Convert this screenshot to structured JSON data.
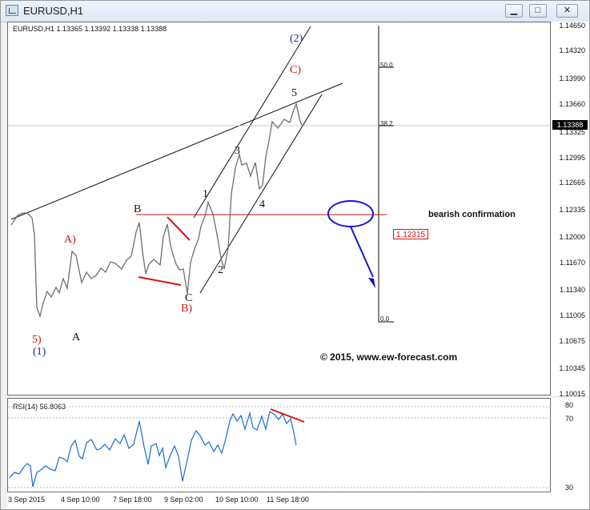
{
  "window": {
    "title": "EURUSD,H1",
    "buttons": {
      "minimize": "▁",
      "maximize": "□",
      "close": "✕"
    }
  },
  "chart": {
    "header": "EURUSD,H1  1.13365 1.13392 1.13338 1.13388",
    "price_axis": [
      "1.14650",
      "1.14320",
      "1.13990",
      "1.13660",
      "1.13325",
      "1.12995",
      "1.12665",
      "1.12335",
      "1.12000",
      "1.11670",
      "1.11340",
      "1.11005",
      "1.10675",
      "1.10345",
      "1.10015"
    ],
    "current_price": "1.13388",
    "level_label": "1.12315",
    "annotations": {
      "bearish": "bearish confirmation",
      "copyright": "© 2015, www.ew-forecast.com",
      "fib_50": "50.0",
      "fib_382": "38.2",
      "fib_0": "0.0"
    },
    "wave_labels": {
      "w1": "1",
      "w2": "2",
      "w3": "3",
      "w4": "4",
      "w5": "5",
      "b": "B",
      "a": "A",
      "c": "C",
      "a_red": "A)",
      "b_red": "B)",
      "c_red": "C)",
      "five_red": "5)",
      "one_blue": "(1)",
      "two_blue": "(2)"
    }
  },
  "rsi": {
    "header": "RSI(14) 56.8063",
    "levels": [
      "80",
      "70",
      "30"
    ]
  },
  "time_axis": [
    "3 Sep 2015",
    "4 Sep 10:00",
    "7 Sep 18:00",
    "9 Sep 02:00",
    "10 Sep 10:00",
    "11 Sep 18:00"
  ],
  "colors": {
    "red": "#cc1111",
    "blue": "#1a2aa8"
  },
  "chart_data": {
    "type": "line",
    "title": "EURUSD,H1",
    "x": [
      "3 Sep 2015",
      "4 Sep 10:00",
      "7 Sep 18:00",
      "9 Sep 02:00",
      "10 Sep 10:00",
      "11 Sep 18:00"
    ],
    "series": [
      {
        "name": "EURUSD",
        "values": [
          1.1225,
          1.118,
          1.12,
          1.1135,
          1.125,
          1.1339
        ]
      },
      {
        "name": "RSI(14)",
        "values": [
          45,
          40,
          62,
          38,
          68,
          56.8
        ]
      }
    ]
  }
}
